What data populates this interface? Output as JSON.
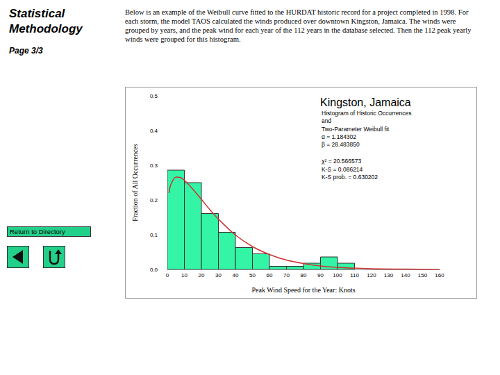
{
  "page": {
    "heading": "Statistical Methodology",
    "page_label": "Page 3/3",
    "description": "Below is an example of the Weibull curve fitted to the HURDAT historic record for a project completed in 1998. For each storm, the model TAOS calculated the winds produced over downtown Kingston, Jamaica. The winds were grouped by years, and the peak wind for each year of the 112 years in the database selected. Then the 112 peak yearly winds were grouped for this histogram.",
    "button": "Return to Directory"
  },
  "chart_data": {
    "type": "histogram",
    "title": "Kingston, Jamaica",
    "annotations": [
      "Histogram of Historic Occurrences",
      "and",
      "Two-Parameter Weibull fit",
      "α = 1.184302",
      "β = 28.483850",
      "χ² = 20.566573",
      "K-S = 0.086214",
      "K-S prob. = 0.630202"
    ],
    "xlabel": "Peak Wind Speed for the Year: Knots",
    "ylabel": "Fraction of All Occurrences",
    "xlim": [
      0,
      160
    ],
    "xticks": [
      0,
      10,
      20,
      30,
      40,
      50,
      60,
      70,
      80,
      90,
      100,
      110,
      120,
      130,
      140,
      150,
      160
    ],
    "ylim": [
      0,
      0.5
    ],
    "yticks": [
      {
        "value": 0,
        "label": "0.0"
      },
      0.1,
      0.2,
      0.3,
      0.4,
      0.5
    ],
    "grid": false,
    "series": [
      {
        "type": "bar",
        "color": "#33f5a5",
        "bins": [
          0,
          10,
          20,
          30,
          40,
          50,
          60,
          70,
          80,
          90,
          100,
          110
        ],
        "values": [
          0.286,
          0.25,
          0.161,
          0.107,
          0.063,
          0.045,
          0.009,
          0.009,
          0.018,
          0.036,
          0.018
        ]
      },
      {
        "type": "line",
        "color": "#cc3333",
        "x": [
          1,
          2,
          5,
          8,
          10,
          15,
          20,
          25,
          30,
          40,
          50,
          60,
          70,
          80,
          90,
          100,
          120,
          140,
          160
        ],
        "values": [
          0.22,
          0.244,
          0.266,
          0.264,
          0.257,
          0.231,
          0.202,
          0.172,
          0.145,
          0.099,
          0.066,
          0.043,
          0.027,
          0.017,
          0.01,
          0.006,
          0.002,
          0.001,
          0
        ]
      }
    ]
  }
}
